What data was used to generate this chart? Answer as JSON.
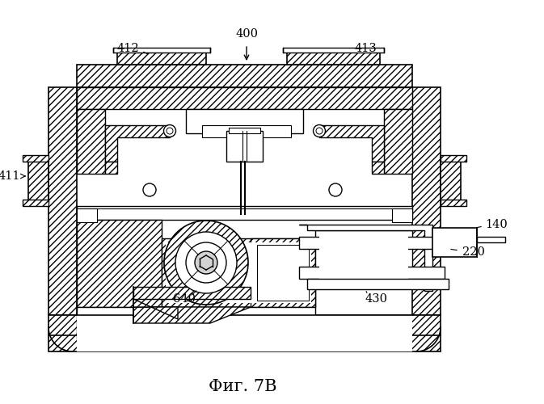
{
  "title": "Фиг. 7В",
  "label_400": "400",
  "label_411": "411",
  "label_412": "412",
  "label_413": "413",
  "label_140": "140",
  "label_220": "220",
  "label_430": "430",
  "label_640": "640",
  "bg_color": "#ffffff",
  "line_color": "#000000",
  "figsize": [
    6.73,
    5.0
  ],
  "dpi": 100
}
